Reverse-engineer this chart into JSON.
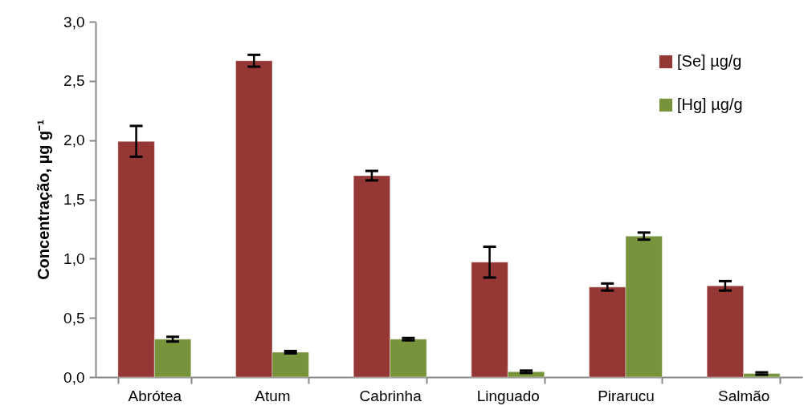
{
  "chart_data": {
    "type": "bar",
    "ylabel": "Concentração, µg g⁻¹",
    "categories": [
      "Abrótea",
      "Atum",
      "Cabrinha",
      "Linguado",
      "Pirarucu",
      "Salmão"
    ],
    "series": [
      {
        "name": "[Se] µg/g",
        "color": "#953735",
        "values": [
          1.99,
          2.67,
          1.7,
          0.97,
          0.76,
          0.77
        ],
        "errors": [
          0.13,
          0.05,
          0.04,
          0.13,
          0.03,
          0.04
        ]
      },
      {
        "name": "[Hg] µg/g",
        "color": "#77933c",
        "values": [
          0.32,
          0.21,
          0.32,
          0.045,
          1.19,
          0.03
        ],
        "errors": [
          0.02,
          0.01,
          0.01,
          0.01,
          0.03,
          0.01
        ]
      }
    ],
    "ylim": [
      0,
      3
    ],
    "yticks": [
      {
        "value": 0,
        "label": "0,0"
      },
      {
        "value": 0.5,
        "label": "0,5"
      },
      {
        "value": 1,
        "label": "1,0"
      },
      {
        "value": 1.5,
        "label": "1,5"
      },
      {
        "value": 2,
        "label": "2,0"
      },
      {
        "value": 2.5,
        "label": "2,5"
      },
      {
        "value": 3,
        "label": "3,0"
      }
    ],
    "grid": false,
    "legend": "top right"
  }
}
